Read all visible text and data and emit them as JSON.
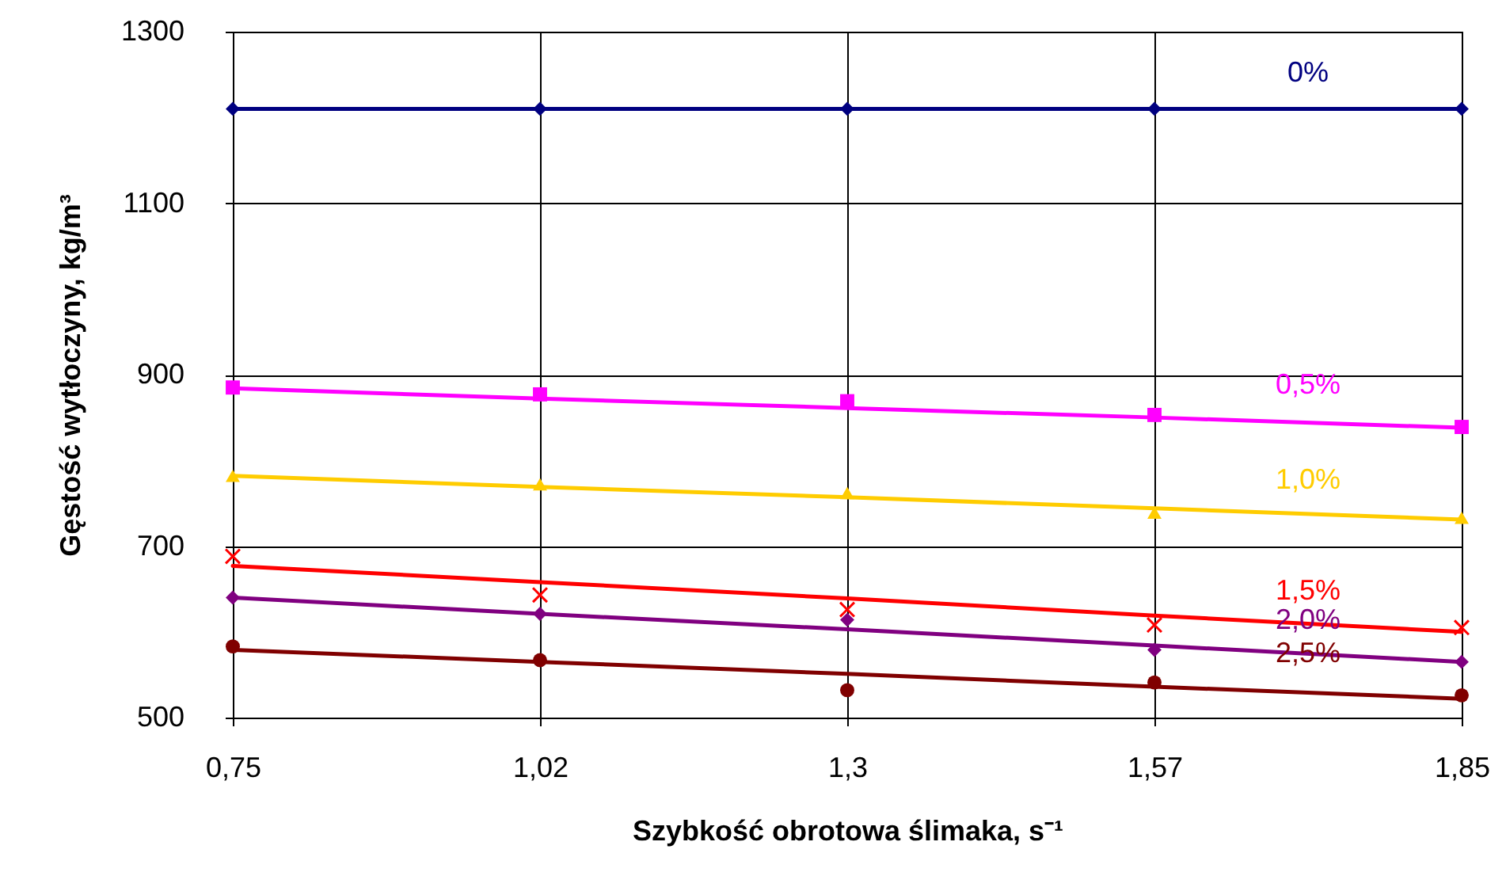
{
  "chart_data": {
    "type": "scatter",
    "xlabel": "Szybkość obrotowa ślimaka, s⁻¹",
    "ylabel": "Gęstość wytłoczyny, kg/m³",
    "categories": [
      "0,75",
      "1,02",
      "1,3",
      "1,57",
      "1,85"
    ],
    "ylim": [
      500,
      1300
    ],
    "yticks": [
      500,
      700,
      900,
      1100,
      1300
    ],
    "grid": true,
    "series": [
      {
        "type": "line",
        "color": "#000080",
        "marker": "none",
        "values": [
          1210,
          1210,
          1210,
          1210,
          1210
        ]
      },
      {
        "type": "line",
        "color": "#ff00ff",
        "marker": "none",
        "values": [
          884,
          872,
          861,
          850,
          838
        ]
      },
      {
        "type": "line",
        "color": "#ffcc00",
        "marker": "none",
        "values": [
          782,
          769,
          757,
          744,
          731
        ]
      },
      {
        "type": "line",
        "color": "#ff0000",
        "marker": "none",
        "values": [
          677,
          658,
          639,
          619,
          600
        ]
      },
      {
        "type": "line",
        "color": "#800080",
        "marker": "none",
        "values": [
          640,
          621,
          603,
          584,
          565
        ]
      },
      {
        "type": "line",
        "color": "#800000",
        "marker": "none",
        "values": [
          579,
          565,
          551,
          536,
          522
        ]
      },
      {
        "name": "0%",
        "color": "#000080",
        "marker": "diamond",
        "values": [
          1210,
          1210,
          1210,
          1210,
          1210
        ]
      },
      {
        "name": "0,5%",
        "color": "#ff00ff",
        "marker": "square",
        "values": [
          885,
          877,
          869,
          853,
          839
        ]
      },
      {
        "name": "1,0%",
        "color": "#ffcc00",
        "marker": "triangle",
        "values": [
          782,
          772,
          762,
          739,
          733
        ]
      },
      {
        "name": "1,5%",
        "color": "#ff0000",
        "marker": "cross",
        "values": [
          688,
          643,
          626,
          608,
          605
        ]
      },
      {
        "name": "2,0%",
        "color": "#800080",
        "marker": "diamond",
        "values": [
          640,
          621,
          614,
          579,
          565
        ]
      },
      {
        "name": "2,5%",
        "color": "#800000",
        "marker": "circle",
        "values": [
          583,
          567,
          532,
          541,
          526
        ]
      }
    ]
  }
}
